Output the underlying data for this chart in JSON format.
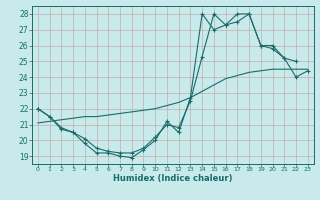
{
  "bg_color": "#c8eaea",
  "line_color": "#1a6b6b",
  "grid_color": "#c0a0a0",
  "xlabel": "Humidex (Indice chaleur)",
  "xlim": [
    -0.5,
    23.5
  ],
  "ylim": [
    18.5,
    28.5
  ],
  "xticks": [
    0,
    1,
    2,
    3,
    4,
    5,
    6,
    7,
    8,
    9,
    10,
    11,
    12,
    13,
    14,
    15,
    16,
    17,
    18,
    19,
    20,
    21,
    22,
    23
  ],
  "yticks": [
    19,
    20,
    21,
    22,
    23,
    24,
    25,
    26,
    27,
    28
  ],
  "line1_x": [
    0,
    1,
    2,
    3,
    4,
    5,
    6,
    7,
    8,
    9,
    10,
    11,
    12,
    13,
    14,
    15,
    16,
    17,
    18,
    19,
    20,
    21,
    22
  ],
  "line1_y": [
    22.0,
    21.5,
    20.7,
    20.5,
    19.8,
    19.2,
    19.2,
    19.0,
    18.9,
    19.4,
    20.0,
    21.2,
    20.5,
    22.7,
    28.0,
    27.0,
    27.3,
    28.0,
    28.0,
    26.0,
    25.8,
    25.2,
    25.0
  ],
  "line2_x": [
    0,
    1,
    2,
    3,
    4,
    5,
    6,
    7,
    8,
    9,
    10,
    11,
    12,
    13,
    14,
    15,
    16,
    17,
    18,
    19,
    20,
    21,
    22,
    23
  ],
  "line2_y": [
    21.1,
    21.2,
    21.3,
    21.4,
    21.5,
    21.5,
    21.6,
    21.7,
    21.8,
    21.9,
    22.0,
    22.2,
    22.4,
    22.7,
    23.1,
    23.5,
    23.9,
    24.1,
    24.3,
    24.4,
    24.5,
    24.5,
    24.5,
    24.5
  ],
  "line3_x": [
    0,
    1,
    2,
    3,
    4,
    5,
    6,
    7,
    8,
    9,
    10,
    11,
    12,
    13,
    14,
    15,
    16,
    17,
    18,
    19,
    20,
    21,
    22,
    23
  ],
  "line3_y": [
    22.0,
    21.5,
    20.8,
    20.5,
    20.1,
    19.5,
    19.3,
    19.2,
    19.2,
    19.5,
    20.2,
    21.0,
    20.8,
    22.5,
    25.3,
    28.0,
    27.3,
    27.5,
    28.0,
    26.0,
    26.0,
    25.2,
    24.0,
    24.4
  ]
}
